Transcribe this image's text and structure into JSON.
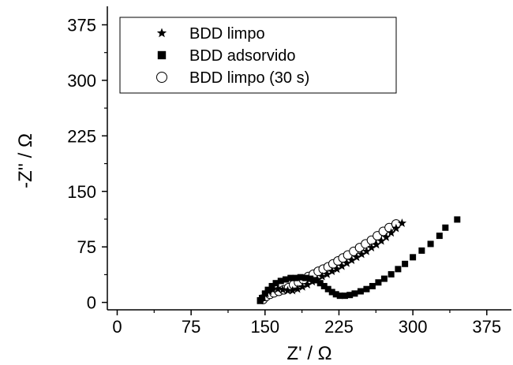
{
  "chart_data": {
    "type": "scatter",
    "xlabel": "Z' / Ω",
    "ylabel": "-Z'' / Ω",
    "xlim": [
      -10,
      400
    ],
    "ylim": [
      -10,
      400
    ],
    "x_ticks": [
      0,
      75,
      150,
      225,
      300,
      375
    ],
    "y_ticks": [
      0,
      75,
      150,
      225,
      300,
      375
    ],
    "grid": false,
    "legend_position": "top-left",
    "series": [
      {
        "name": "BDD limpo",
        "marker": "star",
        "points": [
          [
            146,
            5
          ],
          [
            148,
            8
          ],
          [
            151,
            12
          ],
          [
            154,
            15
          ],
          [
            158,
            17
          ],
          [
            163,
            18
          ],
          [
            168,
            17
          ],
          [
            173,
            16
          ],
          [
            178,
            16
          ],
          [
            183,
            18
          ],
          [
            188,
            21
          ],
          [
            193,
            24
          ],
          [
            198,
            28
          ],
          [
            203,
            31
          ],
          [
            208,
            35
          ],
          [
            213,
            38
          ],
          [
            218,
            42
          ],
          [
            223,
            45
          ],
          [
            228,
            49
          ],
          [
            233,
            53
          ],
          [
            238,
            57
          ],
          [
            243,
            61
          ],
          [
            248,
            65
          ],
          [
            253,
            69
          ],
          [
            258,
            74
          ],
          [
            263,
            78
          ],
          [
            268,
            83
          ],
          [
            273,
            88
          ],
          [
            278,
            94
          ],
          [
            283,
            100
          ],
          [
            289,
            107
          ]
        ]
      },
      {
        "name": "BDD adsorvido",
        "marker": "square",
        "points": [
          [
            145,
            2
          ],
          [
            147,
            6
          ],
          [
            150,
            12
          ],
          [
            153,
            17
          ],
          [
            157,
            22
          ],
          [
            161,
            26
          ],
          [
            166,
            29
          ],
          [
            171,
            31
          ],
          [
            176,
            33
          ],
          [
            181,
            33
          ],
          [
            186,
            34
          ],
          [
            191,
            33
          ],
          [
            196,
            32
          ],
          [
            201,
            30
          ],
          [
            206,
            26
          ],
          [
            210,
            22
          ],
          [
            214,
            18
          ],
          [
            218,
            14
          ],
          [
            222,
            11
          ],
          [
            226,
            9
          ],
          [
            231,
            9
          ],
          [
            236,
            10
          ],
          [
            241,
            12
          ],
          [
            247,
            15
          ],
          [
            253,
            18
          ],
          [
            259,
            22
          ],
          [
            265,
            27
          ],
          [
            271,
            32
          ],
          [
            278,
            38
          ],
          [
            285,
            45
          ],
          [
            292,
            52
          ],
          [
            300,
            61
          ],
          [
            309,
            70
          ],
          [
            318,
            79
          ],
          [
            327,
            90
          ],
          [
            333,
            101
          ],
          [
            345,
            112
          ]
        ]
      },
      {
        "name": "BDD limpo (30 s)",
        "marker": "circle-open",
        "points": [
          [
            148,
            4
          ],
          [
            151,
            8
          ],
          [
            155,
            11
          ],
          [
            159,
            13
          ],
          [
            164,
            15
          ],
          [
            169,
            17
          ],
          [
            174,
            20
          ],
          [
            179,
            24
          ],
          [
            184,
            27
          ],
          [
            189,
            31
          ],
          [
            194,
            35
          ],
          [
            199,
            38
          ],
          [
            204,
            42
          ],
          [
            209,
            45
          ],
          [
            214,
            48
          ],
          [
            219,
            52
          ],
          [
            224,
            56
          ],
          [
            229,
            60
          ],
          [
            234,
            64
          ],
          [
            240,
            69
          ],
          [
            246,
            74
          ],
          [
            252,
            79
          ],
          [
            258,
            84
          ],
          [
            264,
            90
          ],
          [
            270,
            96
          ],
          [
            276,
            101
          ],
          [
            283,
            106
          ]
        ]
      }
    ]
  }
}
